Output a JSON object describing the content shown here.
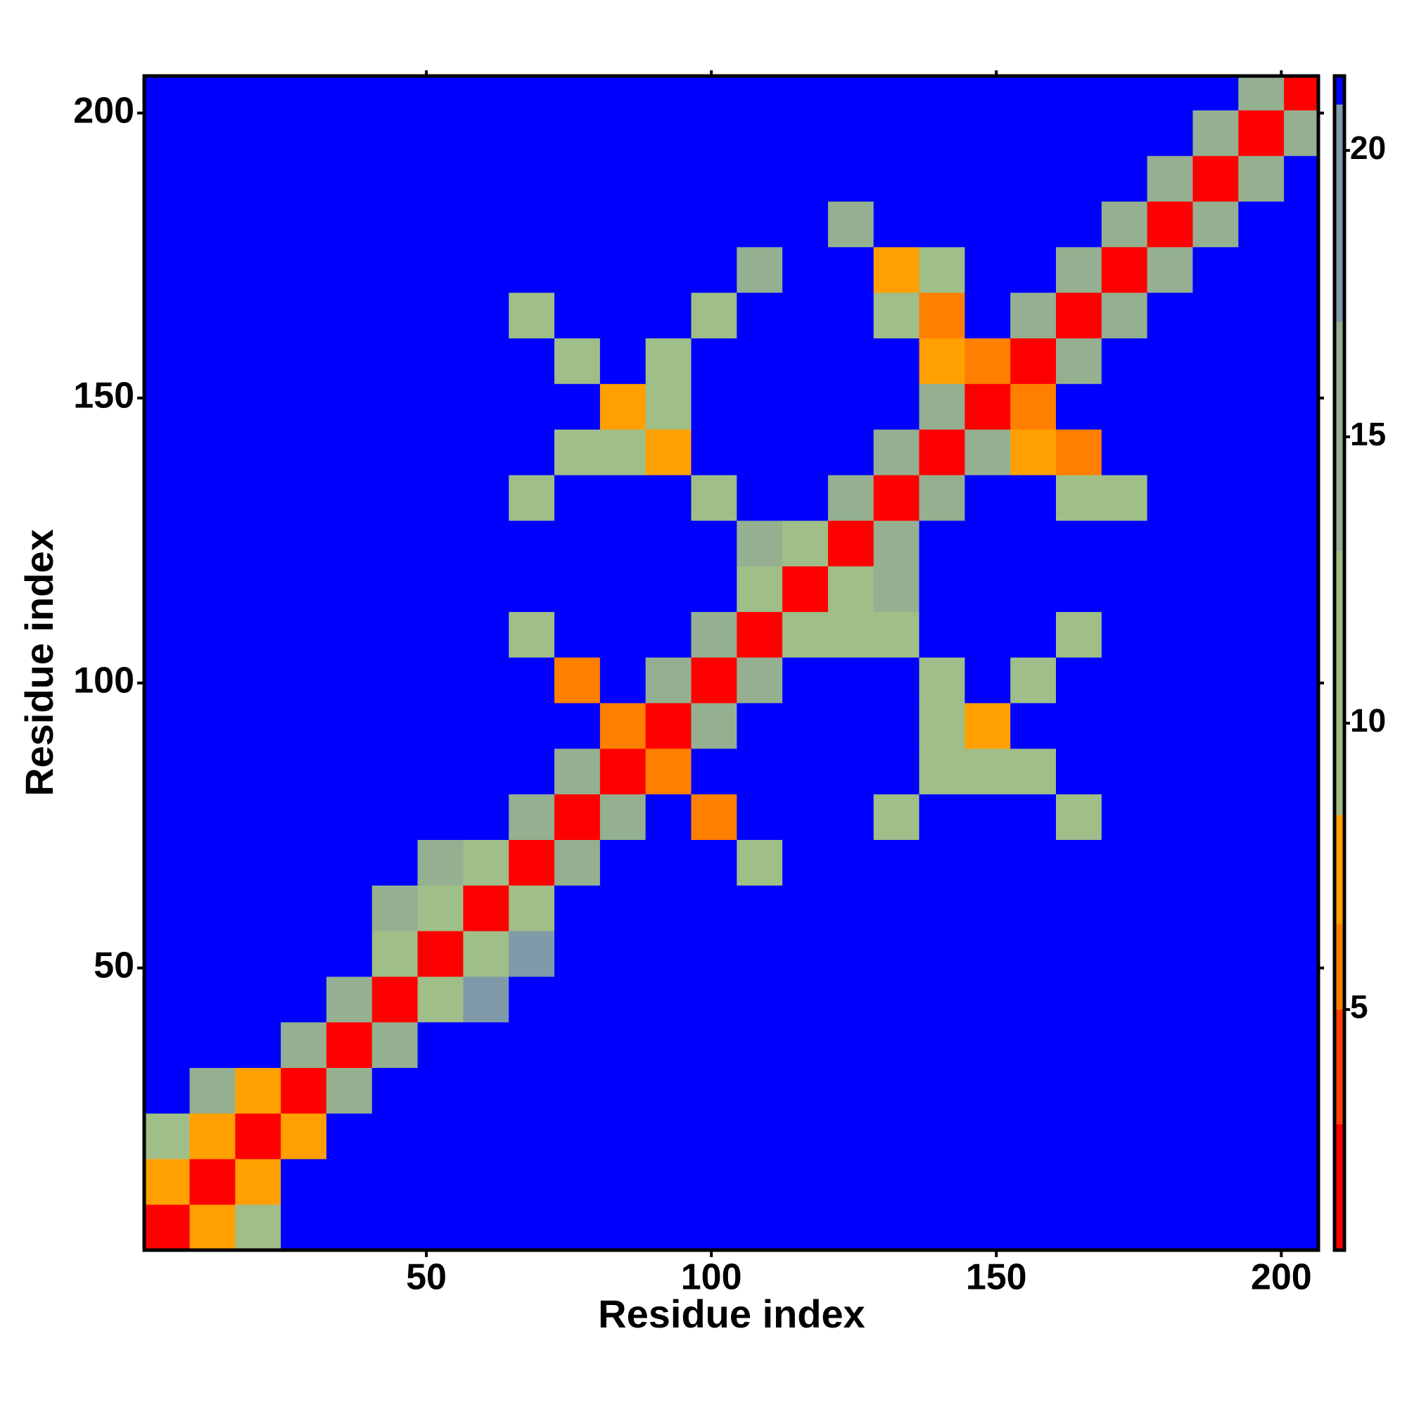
{
  "chart_data": {
    "type": "heatmap",
    "xlabel": "Residue index",
    "ylabel": "Residue index",
    "xlim": [
      0.5,
      206.5
    ],
    "ylim": [
      0.5,
      206.5
    ],
    "xticks": [
      50,
      100,
      150,
      200
    ],
    "yticks": [
      50,
      100,
      150,
      200
    ],
    "xbins": [
      0.5,
      8.5,
      16.5,
      24.5,
      32.5,
      40.5,
      48.5,
      56.5,
      64.5,
      72.5,
      80.5,
      88.5,
      96.5,
      104.5,
      112.5,
      120.5,
      128.5,
      136.5,
      144.5,
      152.5,
      160.5,
      168.5,
      176.5,
      184.5,
      192.5,
      200.5,
      206.5
    ],
    "ybins": [
      0.5,
      8.5,
      16.5,
      24.5,
      32.5,
      40.5,
      48.5,
      56.5,
      64.5,
      72.5,
      80.5,
      88.5,
      96.5,
      104.5,
      112.5,
      120.5,
      128.5,
      136.5,
      144.5,
      152.5,
      160.5,
      168.5,
      176.5,
      184.5,
      192.5,
      200.5,
      206.5
    ],
    "z": [
      [
        2,
        7,
        12,
        21,
        21,
        21,
        21,
        21,
        21,
        21,
        21,
        21,
        21,
        21,
        21,
        21,
        21,
        21,
        21,
        21,
        21,
        21,
        21,
        21,
        21,
        21
      ],
      [
        7,
        2,
        7,
        21,
        21,
        21,
        21,
        21,
        21,
        21,
        21,
        21,
        21,
        21,
        21,
        21,
        21,
        21,
        21,
        21,
        21,
        21,
        21,
        21,
        21,
        21
      ],
      [
        12,
        7,
        2,
        7,
        21,
        21,
        21,
        21,
        21,
        21,
        21,
        21,
        21,
        21,
        21,
        21,
        21,
        21,
        21,
        21,
        21,
        21,
        21,
        21,
        21,
        21
      ],
      [
        21,
        14,
        7,
        2,
        14,
        21,
        21,
        21,
        21,
        21,
        21,
        21,
        21,
        21,
        21,
        21,
        21,
        21,
        21,
        21,
        21,
        21,
        21,
        21,
        21,
        21
      ],
      [
        21,
        21,
        21,
        14,
        2,
        14,
        21,
        21,
        21,
        21,
        21,
        21,
        21,
        21,
        21,
        21,
        21,
        21,
        21,
        21,
        21,
        21,
        21,
        21,
        21,
        21
      ],
      [
        21,
        21,
        21,
        21,
        14,
        2,
        12,
        17,
        21,
        21,
        21,
        21,
        21,
        21,
        21,
        21,
        21,
        21,
        21,
        21,
        21,
        21,
        21,
        21,
        21,
        21
      ],
      [
        21,
        21,
        21,
        21,
        21,
        12,
        2,
        12,
        17,
        21,
        21,
        21,
        21,
        21,
        21,
        21,
        21,
        21,
        21,
        21,
        21,
        21,
        21,
        21,
        21,
        21
      ],
      [
        21,
        21,
        21,
        21,
        21,
        16,
        12,
        2,
        12,
        21,
        21,
        21,
        21,
        21,
        21,
        21,
        21,
        21,
        21,
        21,
        21,
        21,
        21,
        21,
        21,
        21
      ],
      [
        21,
        21,
        21,
        21,
        21,
        21,
        15,
        12,
        2,
        14,
        21,
        21,
        21,
        12,
        21,
        21,
        21,
        21,
        21,
        21,
        21,
        21,
        21,
        21,
        21,
        21
      ],
      [
        21,
        21,
        21,
        21,
        21,
        21,
        21,
        21,
        14,
        2,
        14,
        21,
        6,
        21,
        21,
        21,
        12,
        21,
        21,
        21,
        12,
        21,
        21,
        21,
        21,
        21
      ],
      [
        21,
        21,
        21,
        21,
        21,
        21,
        21,
        21,
        21,
        14,
        2,
        6,
        21,
        21,
        21,
        21,
        21,
        11,
        9,
        11,
        21,
        21,
        21,
        21,
        21,
        21
      ],
      [
        21,
        21,
        21,
        21,
        21,
        21,
        21,
        21,
        21,
        21,
        6,
        2,
        14,
        21,
        21,
        21,
        21,
        10,
        8,
        21,
        21,
        21,
        21,
        21,
        21,
        21
      ],
      [
        21,
        21,
        21,
        21,
        21,
        21,
        21,
        21,
        21,
        6,
        21,
        14,
        2,
        14,
        21,
        21,
        21,
        11,
        21,
        11,
        21,
        21,
        21,
        21,
        21,
        21
      ],
      [
        21,
        21,
        21,
        21,
        21,
        21,
        21,
        21,
        12,
        21,
        21,
        21,
        14,
        2,
        12,
        12,
        12,
        21,
        21,
        21,
        12,
        21,
        21,
        21,
        21,
        21
      ],
      [
        21,
        21,
        21,
        21,
        21,
        21,
        21,
        21,
        21,
        21,
        21,
        21,
        21,
        12,
        2,
        11,
        16,
        21,
        21,
        21,
        21,
        21,
        21,
        21,
        21,
        21
      ],
      [
        21,
        21,
        21,
        21,
        21,
        21,
        21,
        21,
        21,
        21,
        21,
        21,
        21,
        13,
        11,
        2,
        14,
        21,
        21,
        21,
        21,
        21,
        21,
        21,
        21,
        21
      ],
      [
        21,
        21,
        21,
        21,
        21,
        21,
        21,
        21,
        12,
        21,
        21,
        21,
        11,
        21,
        21,
        14,
        2,
        14,
        21,
        21,
        12,
        9,
        21,
        21,
        21,
        21
      ],
      [
        21,
        21,
        21,
        21,
        21,
        21,
        21,
        21,
        21,
        11,
        10,
        8,
        21,
        21,
        21,
        21,
        14,
        2,
        14,
        7,
        6,
        21,
        21,
        21,
        21,
        21
      ],
      [
        21,
        21,
        21,
        21,
        21,
        21,
        21,
        21,
        21,
        21,
        8,
        9,
        21,
        21,
        21,
        21,
        21,
        14,
        2,
        5,
        21,
        21,
        21,
        21,
        21,
        21
      ],
      [
        21,
        21,
        21,
        21,
        21,
        21,
        21,
        21,
        21,
        11,
        21,
        11,
        21,
        21,
        21,
        21,
        21,
        7,
        5,
        2,
        14,
        21,
        21,
        21,
        21,
        21
      ],
      [
        21,
        21,
        21,
        21,
        21,
        21,
        21,
        21,
        12,
        21,
        21,
        21,
        12,
        21,
        21,
        21,
        11,
        6,
        21,
        14,
        2,
        14,
        21,
        21,
        21,
        21
      ],
      [
        21,
        21,
        21,
        21,
        21,
        21,
        21,
        21,
        21,
        21,
        21,
        21,
        21,
        14,
        21,
        21,
        7,
        12,
        21,
        21,
        14,
        2,
        14,
        21,
        21,
        21
      ],
      [
        21,
        21,
        21,
        21,
        21,
        21,
        21,
        21,
        21,
        21,
        21,
        21,
        21,
        21,
        21,
        14,
        21,
        21,
        21,
        21,
        21,
        14,
        2,
        14,
        21,
        21
      ],
      [
        21,
        21,
        21,
        21,
        21,
        21,
        21,
        21,
        21,
        21,
        21,
        21,
        21,
        21,
        21,
        21,
        21,
        21,
        21,
        21,
        21,
        21,
        14,
        2,
        14,
        21
      ],
      [
        21,
        21,
        21,
        21,
        21,
        21,
        21,
        21,
        21,
        21,
        21,
        21,
        21,
        21,
        21,
        21,
        21,
        21,
        21,
        21,
        21,
        21,
        21,
        14,
        2,
        14
      ],
      [
        21,
        21,
        21,
        21,
        21,
        21,
        21,
        21,
        21,
        21,
        21,
        21,
        21,
        21,
        21,
        21,
        21,
        21,
        21,
        21,
        21,
        21,
        21,
        21,
        14,
        2
      ]
    ],
    "zlim": [
      0.8,
      21.3
    ],
    "zticks": [
      5,
      10,
      15,
      20
    ],
    "color_levels": [
      {
        "from": 0.8,
        "color": "#ff0000"
      },
      {
        "from": 3,
        "color": "#ff4000"
      },
      {
        "from": 5,
        "color": "#ff8000"
      },
      {
        "from": 6.5,
        "color": "#ffa000"
      },
      {
        "from": 8.4,
        "color": "#9fbe88"
      },
      {
        "from": 13,
        "color": "#94b090"
      },
      {
        "from": 17,
        "color": "#7f9aa8"
      },
      {
        "from": 20.8,
        "color": "#0000ff"
      }
    ]
  }
}
